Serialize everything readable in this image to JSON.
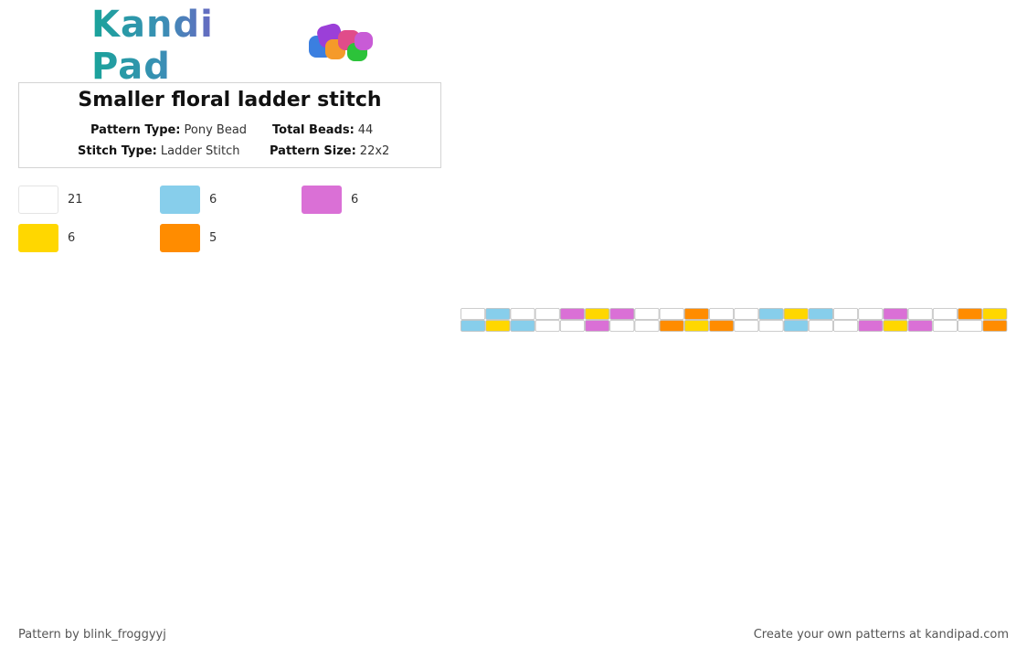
{
  "brand": {
    "name": "Kandi Pad"
  },
  "pattern": {
    "title": "Smaller floral ladder stitch",
    "pattern_type_label": "Pattern Type:",
    "pattern_type": "Pony Bead",
    "total_beads_label": "Total Beads:",
    "total_beads": "44",
    "stitch_type_label": "Stitch Type:",
    "stitch_type": "Ladder Stitch",
    "pattern_size_label": "Pattern Size:",
    "pattern_size": "22x2"
  },
  "legend": [
    {
      "color": "#ffffff",
      "count": "21"
    },
    {
      "color": "#87ceeb",
      "count": "6"
    },
    {
      "color": "#da70d6",
      "count": "6"
    },
    {
      "color": "#ffd700",
      "count": "6"
    },
    {
      "color": "#ff8c00",
      "count": "5"
    }
  ],
  "grid": {
    "rows": [
      [
        "#ffffff",
        "#87ceeb",
        "#ffffff",
        "#ffffff",
        "#da70d6",
        "#ffd700",
        "#da70d6",
        "#ffffff",
        "#ffffff",
        "#ff8c00",
        "#ffffff",
        "#ffffff",
        "#87ceeb",
        "#ffd700",
        "#87ceeb",
        "#ffffff",
        "#ffffff",
        "#da70d6",
        "#ffffff",
        "#ffffff",
        "#ff8c00",
        "#ffd700"
      ],
      [
        "#87ceeb",
        "#ffd700",
        "#87ceeb",
        "#ffffff",
        "#ffffff",
        "#da70d6",
        "#ffffff",
        "#ffffff",
        "#ff8c00",
        "#ffd700",
        "#ff8c00",
        "#ffffff",
        "#ffffff",
        "#87ceeb",
        "#ffffff",
        "#ffffff",
        "#da70d6",
        "#ffd700",
        "#da70d6",
        "#ffffff",
        "#ffffff",
        "#ff8c00"
      ]
    ]
  },
  "footer": {
    "credit": "Pattern by blink_froggyyj",
    "promo": "Create your own patterns at kandipad.com"
  }
}
